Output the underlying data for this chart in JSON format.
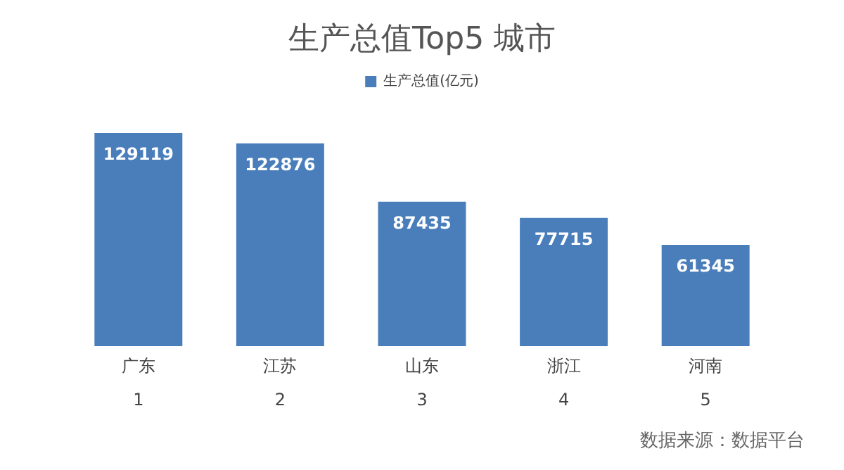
{
  "chart_data": {
    "type": "bar",
    "title": "生产总值Top5 城市",
    "categories": [
      "广东\n\n1",
      "江苏\n\n2",
      "山东\n\n3",
      "浙江\n\n4",
      "河南\n\n5"
    ],
    "series": [
      {
        "name": "生产总值(亿元)",
        "color": "#4a7ebb",
        "values": [
          129119,
          122876,
          87435,
          77715,
          61345
        ]
      }
    ],
    "data_labels": true,
    "legend": "top",
    "annotations": [
      "数据来源：数据平台"
    ]
  }
}
